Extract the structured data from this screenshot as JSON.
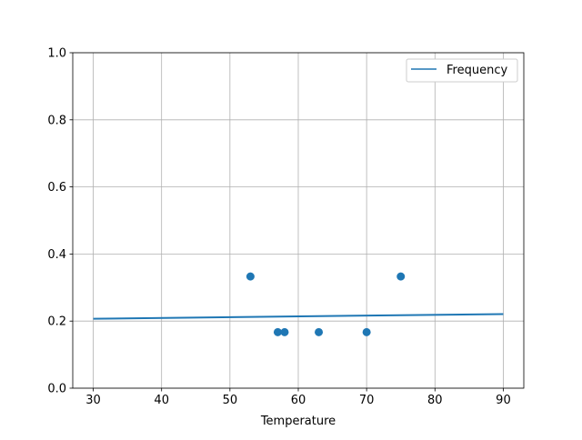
{
  "chart_data": {
    "type": "scatter",
    "title": "",
    "xlabel": "Temperature",
    "ylabel": "",
    "xlim": [
      27,
      93
    ],
    "ylim": [
      0,
      1
    ],
    "xticks": [
      "30",
      "40",
      "50",
      "60",
      "70",
      "80",
      "90"
    ],
    "yticks": [
      "0.0",
      "0.2",
      "0.4",
      "0.6",
      "0.8",
      "1.0"
    ],
    "grid": true,
    "legend": {
      "placement": "top-right",
      "entries": [
        "Frequency"
      ]
    },
    "color": "#1f77b4",
    "scatter": {
      "x": [
        53,
        57,
        58,
        63,
        70,
        75
      ],
      "y": [
        0.333,
        0.167,
        0.167,
        0.167,
        0.167,
        0.333
      ]
    },
    "line": {
      "name": "Frequency",
      "x": [
        30,
        90
      ],
      "y": [
        0.207,
        0.221
      ]
    }
  }
}
